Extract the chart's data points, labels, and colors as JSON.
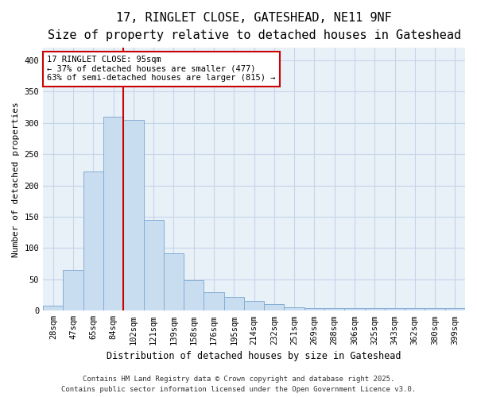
{
  "title_line1": "17, RINGLET CLOSE, GATESHEAD, NE11 9NF",
  "title_line2": "Size of property relative to detached houses in Gateshead",
  "xlabel": "Distribution of detached houses by size in Gateshead",
  "ylabel": "Number of detached properties",
  "categories": [
    "28sqm",
    "47sqm",
    "65sqm",
    "84sqm",
    "102sqm",
    "121sqm",
    "139sqm",
    "158sqm",
    "176sqm",
    "195sqm",
    "214sqm",
    "232sqm",
    "251sqm",
    "269sqm",
    "288sqm",
    "306sqm",
    "325sqm",
    "343sqm",
    "362sqm",
    "380sqm",
    "399sqm"
  ],
  "values": [
    8,
    65,
    222,
    310,
    305,
    145,
    92,
    48,
    30,
    22,
    15,
    11,
    5,
    4,
    4,
    4,
    4,
    4,
    4,
    4,
    4
  ],
  "bar_color": "#c9ddf0",
  "bar_edge_color": "#85aed4",
  "grid_color": "#c5d5e8",
  "background_color": "#f0f5fb",
  "plot_bg_color": "#e8f0f8",
  "vline_x_index": 4,
  "vline_color": "#cc0000",
  "annotation_text": "17 RINGLET CLOSE: 95sqm\n← 37% of detached houses are smaller (477)\n63% of semi-detached houses are larger (815) →",
  "annotation_box_color": "#ffffff",
  "annotation_box_edge": "#cc0000",
  "footer_line1": "Contains HM Land Registry data © Crown copyright and database right 2025.",
  "footer_line2": "Contains public sector information licensed under the Open Government Licence v3.0.",
  "ylim": [
    0,
    420
  ],
  "yticks": [
    0,
    50,
    100,
    150,
    200,
    250,
    300,
    350,
    400
  ],
  "title_fontsize": 11,
  "subtitle_fontsize": 9,
  "tick_fontsize": 7.5,
  "ylabel_fontsize": 8,
  "xlabel_fontsize": 8.5,
  "footer_fontsize": 6.5
}
